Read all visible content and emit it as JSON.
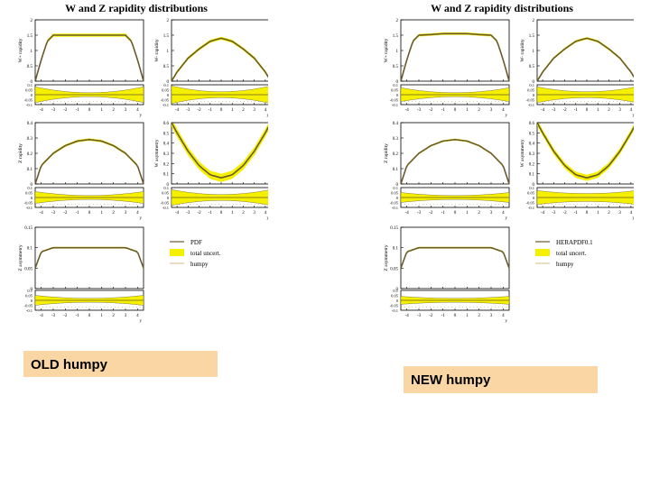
{
  "chart_data": [
    {
      "figure": "old",
      "title": "W and Z rapidity distributions",
      "caption": "OLD humpy",
      "panels": [
        {
          "type": "line",
          "id": "w-plus",
          "ylabel": "W+ rapidity",
          "xlim": [
            -4.5,
            4.5
          ],
          "ylim": [
            0,
            2
          ],
          "yticks": [
            "0",
            "0.5",
            "1",
            "1.5",
            "2"
          ],
          "series": [
            {
              "x": [
                -4.5,
                -4,
                -3.5,
                -3,
                -2,
                -1,
                0,
                1,
                2,
                3,
                3.5,
                4,
                4.5
              ],
              "y": [
                0.0,
                0.7,
                1.3,
                1.5,
                1.5,
                1.5,
                1.5,
                1.5,
                1.5,
                1.5,
                1.3,
                0.7,
                0.0
              ]
            }
          ],
          "band": 0.05,
          "ratio": {
            "ylim": [
              -0.1,
              0.1
            ],
            "yticks": [
              "0.1",
              "0.05",
              "0",
              "-0.05",
              "-0.1"
            ],
            "band_edge": 0.08,
            "band_mid": 0.02
          }
        },
        {
          "type": "line",
          "id": "w-minus",
          "ylabel": "W- rapidity",
          "xlim": [
            -4.5,
            4.5
          ],
          "ylim": [
            0,
            2
          ],
          "yticks": [
            "0",
            "0.5",
            "1",
            "1.5",
            "2"
          ],
          "series": [
            {
              "x": [
                -4.5,
                -4,
                -3,
                -2,
                -1,
                0,
                1,
                2,
                3,
                4,
                4.5
              ],
              "y": [
                0.0,
                0.3,
                0.75,
                1.05,
                1.3,
                1.4,
                1.3,
                1.05,
                0.75,
                0.3,
                0.0
              ]
            }
          ],
          "band": 0.05,
          "ratio": {
            "ylim": [
              -0.1,
              0.1
            ],
            "yticks": [
              "0.1",
              "0.05",
              "0",
              "-0.05",
              "-0.1"
            ],
            "band_edge": 0.09,
            "band_mid": 0.03
          }
        },
        {
          "type": "line",
          "id": "z-rap",
          "ylabel": "Z rapidity",
          "xlim": [
            -4.5,
            4.5
          ],
          "ylim": [
            0,
            0.4
          ],
          "yticks": [
            "0",
            "0.1",
            "0.2",
            "0.3",
            "0.4"
          ],
          "series": [
            {
              "x": [
                -4.5,
                -4,
                -3,
                -2,
                -1,
                0,
                1,
                2,
                3,
                4,
                4.5
              ],
              "y": [
                0.0,
                0.12,
                0.2,
                0.25,
                0.28,
                0.29,
                0.28,
                0.25,
                0.2,
                0.12,
                0.0
              ]
            }
          ],
          "band": 0.008,
          "ratio": {
            "ylim": [
              -0.1,
              0.1
            ],
            "yticks": [
              "0.1",
              "0.05",
              "0",
              "-0.05",
              "-0.1"
            ],
            "band_edge": 0.06,
            "band_mid": 0.02
          }
        },
        {
          "type": "line",
          "id": "w-asym",
          "ylabel": "W asymmetry",
          "xlim": [
            -4.5,
            4.5
          ],
          "ylim": [
            0,
            0.6
          ],
          "yticks": [
            "0",
            "0.1",
            "0.2",
            "0.3",
            "0.4",
            "0.5",
            "0.6"
          ],
          "series": [
            {
              "x": [
                -4.5,
                -4,
                -3,
                -2,
                -1,
                0,
                1,
                2,
                3,
                4,
                4.5
              ],
              "y": [
                0.6,
                0.5,
                0.32,
                0.18,
                0.09,
                0.06,
                0.09,
                0.18,
                0.32,
                0.5,
                0.6
              ]
            }
          ],
          "band": 0.04,
          "ratio": {
            "ylim": [
              -0.1,
              0.1
            ],
            "yticks": [
              "0.1",
              "0.05",
              "0",
              "-0.05",
              "-0.1"
            ],
            "band_edge": 0.08,
            "band_mid": 0.03
          }
        },
        {
          "type": "line",
          "id": "z-asym",
          "ylabel": "Z asymmetry",
          "xlim": [
            -4.5,
            4.5
          ],
          "ylim": [
            0,
            0.15
          ],
          "yticks": [
            "0",
            "0.05",
            "0.1",
            "0.15"
          ],
          "series": [
            {
              "x": [
                -4.5,
                -4,
                -3,
                -2,
                -1,
                0,
                1,
                2,
                3,
                4,
                4.5
              ],
              "y": [
                0.05,
                0.09,
                0.1,
                0.1,
                0.1,
                0.1,
                0.1,
                0.1,
                0.1,
                0.09,
                0.05
              ]
            }
          ],
          "band": 0.002,
          "ratio": {
            "ylim": [
              -0.1,
              0.1
            ],
            "yticks": [
              "0.1",
              "0.05",
              "0",
              "-0.05",
              "-0.1"
            ],
            "band_edge": 0.05,
            "band_mid": 0.02
          }
        }
      ],
      "xticks": [
        "-4",
        "-3",
        "-2",
        "-1",
        "0",
        "1",
        "2",
        "3",
        "4"
      ],
      "xlabel": "y",
      "legend": [
        {
          "label": "PDF",
          "kind": "line"
        },
        {
          "label": "total uncert.",
          "kind": "band"
        },
        {
          "label": "humpy",
          "kind": "thin"
        }
      ],
      "colors": {
        "band": "#f5f000",
        "central": "#6b5a2a",
        "thin": "#c0a050"
      }
    },
    {
      "figure": "new",
      "title": "W and Z rapidity distributions",
      "caption": "NEW humpy",
      "panels": [
        {
          "type": "line",
          "id": "w-plus",
          "ylabel": "W+ rapidity",
          "xlim": [
            -4.5,
            4.5
          ],
          "ylim": [
            0,
            2
          ],
          "yticks": [
            "0",
            "0.5",
            "1",
            "1.5",
            "2"
          ],
          "series": [
            {
              "x": [
                -4.5,
                -4,
                -3.5,
                -3,
                -2,
                -1,
                0,
                1,
                2,
                3,
                3.5,
                4,
                4.5
              ],
              "y": [
                0.0,
                0.7,
                1.3,
                1.5,
                1.52,
                1.55,
                1.55,
                1.55,
                1.52,
                1.5,
                1.3,
                0.7,
                0.0
              ]
            }
          ],
          "band": 0.04,
          "ratio": {
            "ylim": [
              -0.1,
              0.1
            ],
            "yticks": [
              "0.1",
              "0.05",
              "0",
              "-0.05",
              "-0.1"
            ],
            "band_edge": 0.07,
            "band_mid": 0.02
          }
        },
        {
          "type": "line",
          "id": "w-minus",
          "ylabel": "W- rapidity",
          "xlim": [
            -4.5,
            4.5
          ],
          "ylim": [
            0,
            2
          ],
          "yticks": [
            "0",
            "0.5",
            "1",
            "1.5",
            "2"
          ],
          "series": [
            {
              "x": [
                -4.5,
                -4,
                -3,
                -2,
                -1,
                0,
                1,
                2,
                3,
                4,
                4.5
              ],
              "y": [
                0.0,
                0.3,
                0.75,
                1.05,
                1.3,
                1.4,
                1.3,
                1.05,
                0.75,
                0.3,
                0.0
              ]
            }
          ],
          "band": 0.04,
          "ratio": {
            "ylim": [
              -0.1,
              0.1
            ],
            "yticks": [
              "0.1",
              "0.05",
              "0",
              "-0.05",
              "-0.1"
            ],
            "band_edge": 0.08,
            "band_mid": 0.03
          }
        },
        {
          "type": "line",
          "id": "z-rap",
          "ylabel": "Z rapidity",
          "xlim": [
            -4.5,
            4.5
          ],
          "ylim": [
            0,
            0.4
          ],
          "yticks": [
            "0",
            "0.1",
            "0.2",
            "0.3",
            "0.4"
          ],
          "series": [
            {
              "x": [
                -4.5,
                -4,
                -3,
                -2,
                -1,
                0,
                1,
                2,
                3,
                4,
                4.5
              ],
              "y": [
                0.0,
                0.12,
                0.2,
                0.25,
                0.28,
                0.29,
                0.28,
                0.25,
                0.2,
                0.12,
                0.0
              ]
            }
          ],
          "band": 0.006,
          "ratio": {
            "ylim": [
              -0.1,
              0.1
            ],
            "yticks": [
              "0.1",
              "0.05",
              "0",
              "-0.05",
              "-0.1"
            ],
            "band_edge": 0.05,
            "band_mid": 0.02
          }
        },
        {
          "type": "line",
          "id": "w-asym",
          "ylabel": "W asymmetry",
          "xlim": [
            -4.5,
            4.5
          ],
          "ylim": [
            0,
            0.6
          ],
          "yticks": [
            "0",
            "0.1",
            "0.2",
            "0.3",
            "0.4",
            "0.5",
            "0.6"
          ],
          "series": [
            {
              "x": [
                -4.5,
                -4,
                -3,
                -2,
                -1,
                0,
                1,
                2,
                3,
                4,
                4.5
              ],
              "y": [
                0.6,
                0.5,
                0.32,
                0.18,
                0.09,
                0.06,
                0.09,
                0.18,
                0.32,
                0.5,
                0.6
              ]
            }
          ],
          "band": 0.03,
          "ratio": {
            "ylim": [
              -0.1,
              0.1
            ],
            "yticks": [
              "0.1",
              "0.05",
              "0",
              "-0.05",
              "-0.1"
            ],
            "band_edge": 0.07,
            "band_mid": 0.04
          }
        },
        {
          "type": "line",
          "id": "z-asym",
          "ylabel": "Z asymmetry",
          "xlim": [
            -4.5,
            4.5
          ],
          "ylim": [
            0,
            0.15
          ],
          "yticks": [
            "0",
            "0.05",
            "0.1",
            "0.15"
          ],
          "series": [
            {
              "x": [
                -4.5,
                -4,
                -3,
                -2,
                -1,
                0,
                1,
                2,
                3,
                4,
                4.5
              ],
              "y": [
                0.05,
                0.09,
                0.1,
                0.1,
                0.1,
                0.1,
                0.1,
                0.1,
                0.1,
                0.09,
                0.05
              ]
            }
          ],
          "band": 0.002,
          "ratio": {
            "ylim": [
              -0.1,
              0.1
            ],
            "yticks": [
              "0.1",
              "0.05",
              "0",
              "-0.05",
              "-0.1"
            ],
            "band_edge": 0.04,
            "band_mid": 0.02
          }
        }
      ],
      "xticks": [
        "-4",
        "-3",
        "-2",
        "-1",
        "0",
        "1",
        "2",
        "3",
        "4"
      ],
      "xlabel": "y",
      "legend": [
        {
          "label": "HERAPDF0.1",
          "kind": "line"
        },
        {
          "label": "total uncert.",
          "kind": "band"
        },
        {
          "label": "humpy",
          "kind": "thin"
        }
      ],
      "colors": {
        "band": "#f5f000",
        "central": "#6b5a2a",
        "thin": "#c0a050"
      }
    }
  ]
}
